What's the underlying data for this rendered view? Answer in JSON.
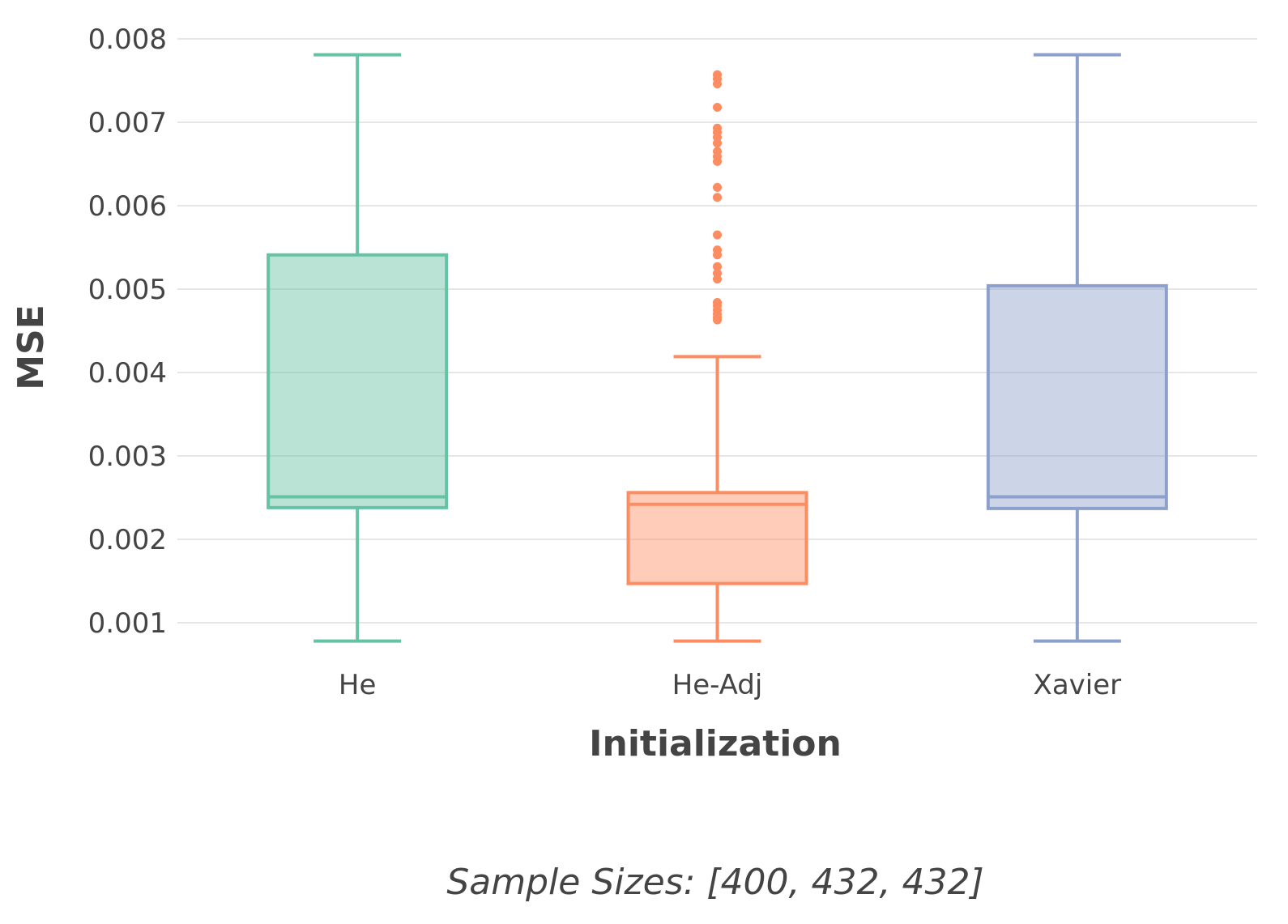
{
  "chart_data": {
    "type": "box",
    "xlabel": "Initialization",
    "ylabel": "MSE",
    "ylim": [
      0.0005,
      0.0081
    ],
    "yticks": [
      "0.001",
      "0.002",
      "0.003",
      "0.004",
      "0.005",
      "0.006",
      "0.007",
      "0.008"
    ],
    "ytick_values": [
      0.001,
      0.002,
      0.003,
      0.004,
      0.005,
      0.006,
      0.007,
      0.008
    ],
    "grid": true,
    "annotation": "Sample Sizes: [400, 432, 432]",
    "categories": [
      "He",
      "He-Adj",
      "Xavier"
    ],
    "boxes": [
      {
        "name": "He",
        "color": "#66c2a5",
        "whisker_low": 0.00078,
        "q1": 0.00238,
        "median": 0.00251,
        "q3": 0.00541,
        "whisker_high": 0.00781,
        "outliers": []
      },
      {
        "name": "He-Adj",
        "color": "#fc8d62",
        "whisker_low": 0.00078,
        "q1": 0.00147,
        "median": 0.00242,
        "q3": 0.00256,
        "whisker_high": 0.00419,
        "outliers": [
          0.00463,
          0.00466,
          0.0047,
          0.00475,
          0.0048,
          0.00484,
          0.00512,
          0.00519,
          0.00527,
          0.00541,
          0.00547,
          0.00565,
          0.0061,
          0.00622,
          0.00653,
          0.00659,
          0.00665,
          0.00675,
          0.00682,
          0.00688,
          0.00693,
          0.00718,
          0.00746,
          0.00752,
          0.00757
        ]
      },
      {
        "name": "Xavier",
        "color": "#8da0cb",
        "whisker_low": 0.00078,
        "q1": 0.00237,
        "median": 0.00251,
        "q3": 0.00504,
        "whisker_high": 0.00781,
        "outliers": []
      }
    ]
  }
}
